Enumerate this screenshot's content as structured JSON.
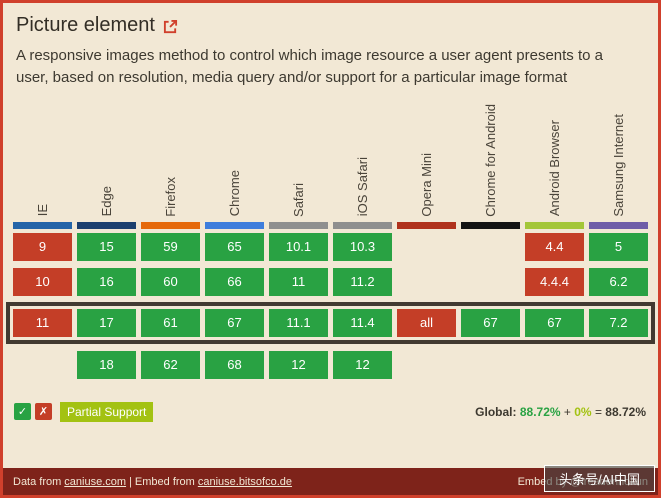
{
  "header": {
    "title": "Picture element",
    "description": "A responsive images method to control which image resource a user agent presents to a user, based on resolution, media query and/or support for a particular image format"
  },
  "colors": {
    "background": "#f2e8d5",
    "border": "#d0402c",
    "supported": "#29a243",
    "not_supported": "#c43e27",
    "partial": "#a3c212",
    "footer_bg": "#7e231a",
    "current_row_border": "#423a31"
  },
  "browsers": [
    {
      "name": "IE",
      "bar_color": "#2464a8"
    },
    {
      "name": "Edge",
      "bar_color": "#1c3f6e"
    },
    {
      "name": "Firefox",
      "bar_color": "#e5690b"
    },
    {
      "name": "Chrome",
      "bar_color": "#3e7ddc"
    },
    {
      "name": "Safari",
      "bar_color": "#8f8f8f"
    },
    {
      "name": "iOS Safari",
      "bar_color": "#8f8f8f"
    },
    {
      "name": "Opera Mini",
      "bar_color": "#b0321c"
    },
    {
      "name": "Chrome for Android",
      "bar_color": "#141414"
    },
    {
      "name": "Android Browser",
      "bar_color": "#a4c639"
    },
    {
      "name": "Samsung Internet",
      "bar_color": "#6f5da8"
    }
  ],
  "rows": [
    {
      "current": false,
      "cells": [
        {
          "text": "9",
          "support": "n"
        },
        {
          "text": "15",
          "support": "y"
        },
        {
          "text": "59",
          "support": "y"
        },
        {
          "text": "65",
          "support": "y"
        },
        {
          "text": "10.1",
          "support": "y"
        },
        {
          "text": "10.3",
          "support": "y"
        },
        {
          "text": "",
          "support": "none"
        },
        {
          "text": "",
          "support": "none"
        },
        {
          "text": "4.4",
          "support": "n"
        },
        {
          "text": "5",
          "support": "y"
        }
      ]
    },
    {
      "current": false,
      "cells": [
        {
          "text": "10",
          "support": "n"
        },
        {
          "text": "16",
          "support": "y"
        },
        {
          "text": "60",
          "support": "y"
        },
        {
          "text": "66",
          "support": "y"
        },
        {
          "text": "11",
          "support": "y"
        },
        {
          "text": "11.2",
          "support": "y"
        },
        {
          "text": "",
          "support": "none"
        },
        {
          "text": "",
          "support": "none"
        },
        {
          "text": "4.4.4",
          "support": "n"
        },
        {
          "text": "6.2",
          "support": "y"
        }
      ]
    },
    {
      "current": true,
      "cells": [
        {
          "text": "11",
          "support": "n"
        },
        {
          "text": "17",
          "support": "y"
        },
        {
          "text": "61",
          "support": "y"
        },
        {
          "text": "67",
          "support": "y"
        },
        {
          "text": "11.1",
          "support": "y"
        },
        {
          "text": "11.4",
          "support": "y"
        },
        {
          "text": "all",
          "support": "n"
        },
        {
          "text": "67",
          "support": "y"
        },
        {
          "text": "67",
          "support": "y"
        },
        {
          "text": "7.2",
          "support": "y"
        }
      ]
    },
    {
      "current": false,
      "cells": [
        {
          "text": "",
          "support": "none"
        },
        {
          "text": "18",
          "support": "y"
        },
        {
          "text": "62",
          "support": "y"
        },
        {
          "text": "68",
          "support": "y"
        },
        {
          "text": "12",
          "support": "y"
        },
        {
          "text": "12",
          "support": "y"
        },
        {
          "text": "",
          "support": "none"
        },
        {
          "text": "",
          "support": "none"
        },
        {
          "text": "",
          "support": "none"
        },
        {
          "text": "",
          "support": "none"
        }
      ]
    }
  ],
  "legend": {
    "supported_symbol": "✓",
    "not_supported_symbol": "✗",
    "partial_label": "Partial Support"
  },
  "global_stats": {
    "label": "Global:",
    "supported_pct": "88.72%",
    "plus": "+",
    "partial_pct": "0%",
    "equals": "=",
    "total_pct": "88.72%"
  },
  "footer": {
    "data_from": "Data from",
    "caniuse_link": "caniuse.com",
    "separator": "|",
    "embed_from": "Embed from",
    "embed_link": "caniuse.bitsofco.de",
    "embed_by": "Embed by @ireaderinokun"
  },
  "watermark": {
    "text": "头条号/AI中国"
  }
}
